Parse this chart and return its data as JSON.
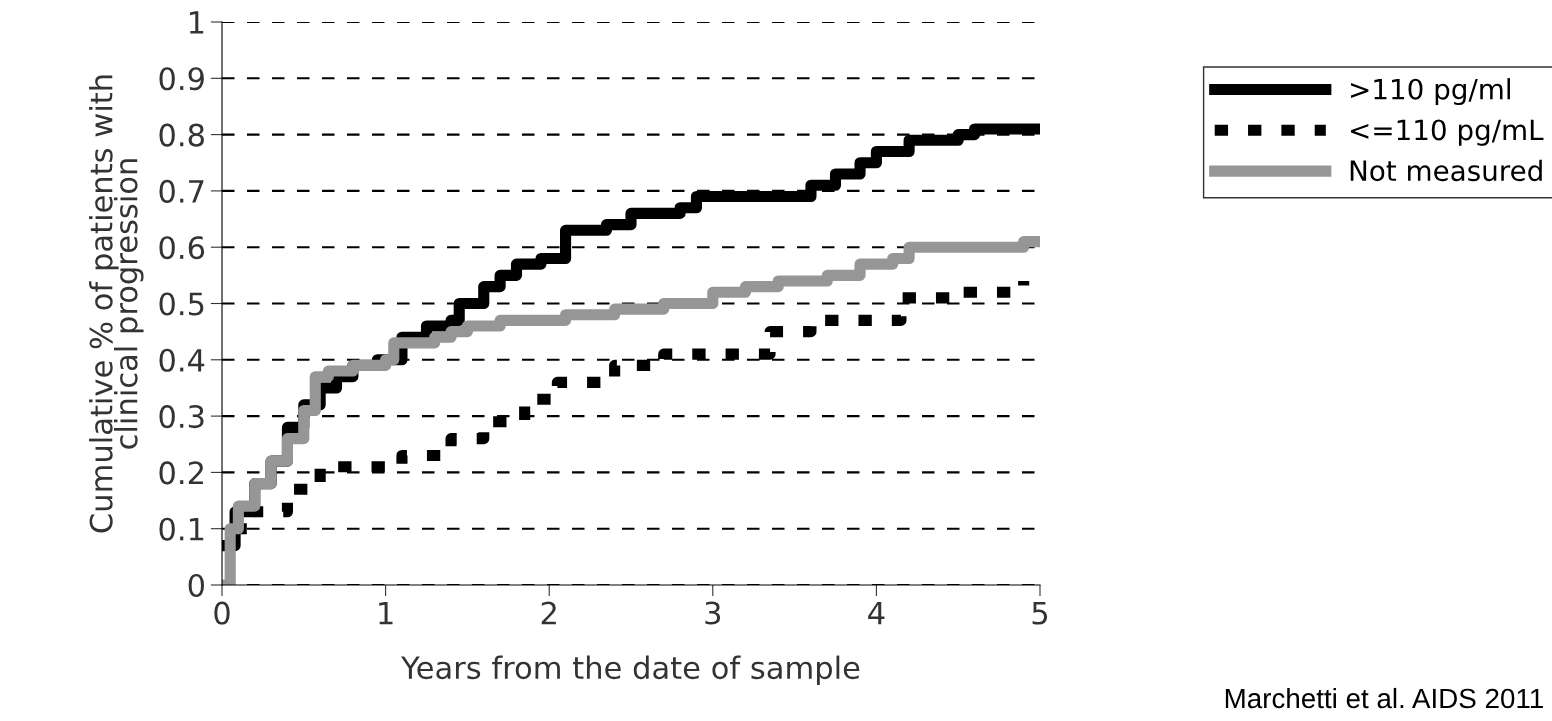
{
  "chart_data": {
    "type": "step",
    "xlabel": "Years from the date of sample",
    "ylabel": "Cumulative % of patients with\nclinical progression",
    "xlim": [
      0,
      5
    ],
    "ylim": [
      0,
      1
    ],
    "xticks": [
      0,
      1,
      2,
      3,
      4,
      5
    ],
    "yticks": [
      0,
      0.1,
      0.2,
      0.3,
      0.4,
      0.5,
      0.6,
      0.7,
      0.8,
      0.9,
      1
    ],
    "grid": "y",
    "legend": "top right",
    "annotations": [
      "Marchetti et al. AIDS 2011"
    ],
    "series": [
      {
        "name": ">110 pg/ml",
        "color": "#000000",
        "line_style": "solid",
        "x": [
          0.03,
          0.08,
          0.2,
          0.3,
          0.4,
          0.5,
          0.6,
          0.7,
          0.8,
          0.95,
          1.1,
          1.25,
          1.4,
          1.45,
          1.6,
          1.7,
          1.8,
          1.95,
          2.1,
          2.35,
          2.5,
          2.8,
          2.9,
          3.5,
          3.6,
          3.75,
          3.9,
          4.0,
          4.2,
          4.5,
          4.6,
          5.0
        ],
        "values": [
          0.07,
          0.13,
          0.18,
          0.22,
          0.28,
          0.32,
          0.35,
          0.37,
          0.39,
          0.4,
          0.44,
          0.46,
          0.47,
          0.5,
          0.53,
          0.55,
          0.57,
          0.58,
          0.63,
          0.64,
          0.66,
          0.67,
          0.69,
          0.69,
          0.71,
          0.73,
          0.75,
          0.77,
          0.79,
          0.8,
          0.81,
          0.81
        ]
      },
      {
        "name": "<=110 pg/mL",
        "color": "#000000",
        "line_style": "dashed",
        "x": [
          0.07,
          0.2,
          0.4,
          0.6,
          0.9,
          1.1,
          1.4,
          1.6,
          1.85,
          2.05,
          2.4,
          2.7,
          3.05,
          3.35,
          3.6,
          3.95,
          4.15,
          4.5,
          4.9
        ],
        "values": [
          0.1,
          0.13,
          0.17,
          0.21,
          0.21,
          0.23,
          0.26,
          0.29,
          0.33,
          0.36,
          0.39,
          0.41,
          0.41,
          0.45,
          0.47,
          0.47,
          0.51,
          0.52,
          0.54
        ]
      },
      {
        "name": "Not measured",
        "color": "#969696",
        "line_style": "solid",
        "x": [
          0.02,
          0.05,
          0.1,
          0.2,
          0.3,
          0.4,
          0.5,
          0.57,
          0.65,
          0.8,
          1.0,
          1.05,
          1.3,
          1.4,
          1.5,
          1.7,
          2.1,
          2.4,
          2.7,
          3.0,
          3.2,
          3.4,
          3.7,
          3.9,
          4.1,
          4.2,
          4.9,
          5.0
        ],
        "values": [
          0,
          0.1,
          0.14,
          0.18,
          0.22,
          0.26,
          0.31,
          0.37,
          0.38,
          0.39,
          0.4,
          0.43,
          0.44,
          0.45,
          0.46,
          0.47,
          0.48,
          0.49,
          0.5,
          0.52,
          0.53,
          0.54,
          0.55,
          0.57,
          0.58,
          0.6,
          0.61,
          0.61
        ]
      }
    ]
  }
}
